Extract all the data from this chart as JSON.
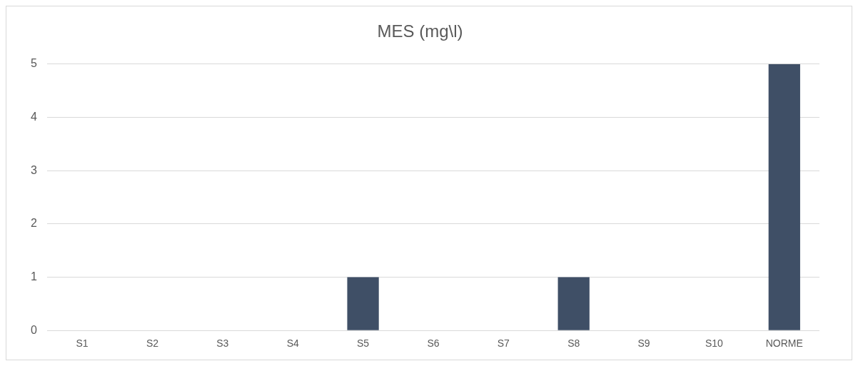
{
  "chart_data": {
    "type": "bar",
    "title": "MES (mg\\l)",
    "categories": [
      "S1",
      "S2",
      "S3",
      "S4",
      "S5",
      "S6",
      "S7",
      "S8",
      "S9",
      "S10",
      "NORME"
    ],
    "values": [
      0,
      0,
      0,
      0,
      1,
      0,
      0,
      1,
      0,
      0,
      5
    ],
    "color": "#3f4f66",
    "ylim": [
      0,
      5
    ],
    "yticks": [
      0,
      1,
      2,
      3,
      4,
      5
    ],
    "grid": "y",
    "legend": false
  }
}
